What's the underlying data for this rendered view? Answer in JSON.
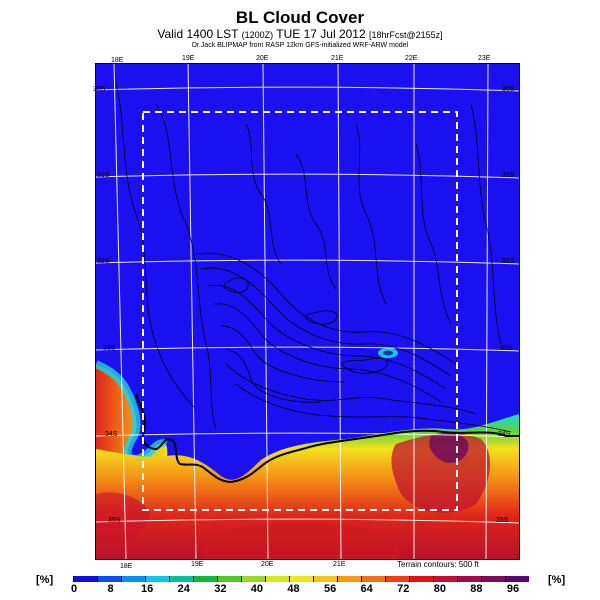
{
  "header": {
    "title": "BL Cloud Cover",
    "subtitle_main": "Valid 1400 LST",
    "subtitle_code": "(1200Z)",
    "subtitle_date": "TUE 17 Jul 2012",
    "subtitle_fcst": "[18hrFcst@2155z]",
    "credit": "Dr.Jack BLIPMAP from RASP 12km GFS-initialized WRF-ARW model"
  },
  "map": {
    "lon_labels_top": [
      "18E",
      "19E",
      "20E",
      "21E",
      "22E",
      "23E"
    ],
    "lon_labels_bottom": [
      "18E",
      "19E",
      "20E",
      "21E"
    ],
    "lat_labels_left": [
      "30S",
      "31S",
      "32S",
      "33S",
      "34S",
      "35S"
    ],
    "lat_labels_right": [
      "30S",
      "31S",
      "32S",
      "33S",
      "34S",
      "35S"
    ],
    "terrain_note": "Terrain contours: 500 ft",
    "colors": {
      "clear": "#1e14ff",
      "land_contour": "#000000",
      "box": "#ffffff"
    }
  },
  "legend": {
    "unit_left": "[%]",
    "unit_right": "[%]",
    "ticks": [
      "0",
      "8",
      "16",
      "24",
      "32",
      "40",
      "48",
      "56",
      "64",
      "72",
      "80",
      "88",
      "96"
    ],
    "colors": [
      "#1010e0",
      "#0a4ef2",
      "#0a90f5",
      "#08c9e8",
      "#05c09a",
      "#12b83a",
      "#52c826",
      "#9ad823",
      "#d6e61f",
      "#f5e41e",
      "#f7c21a",
      "#f79b17",
      "#f46f15",
      "#ef3f12",
      "#e01313",
      "#c20f33",
      "#a00c4a",
      "#7a0a62",
      "#5c0870"
    ]
  }
}
